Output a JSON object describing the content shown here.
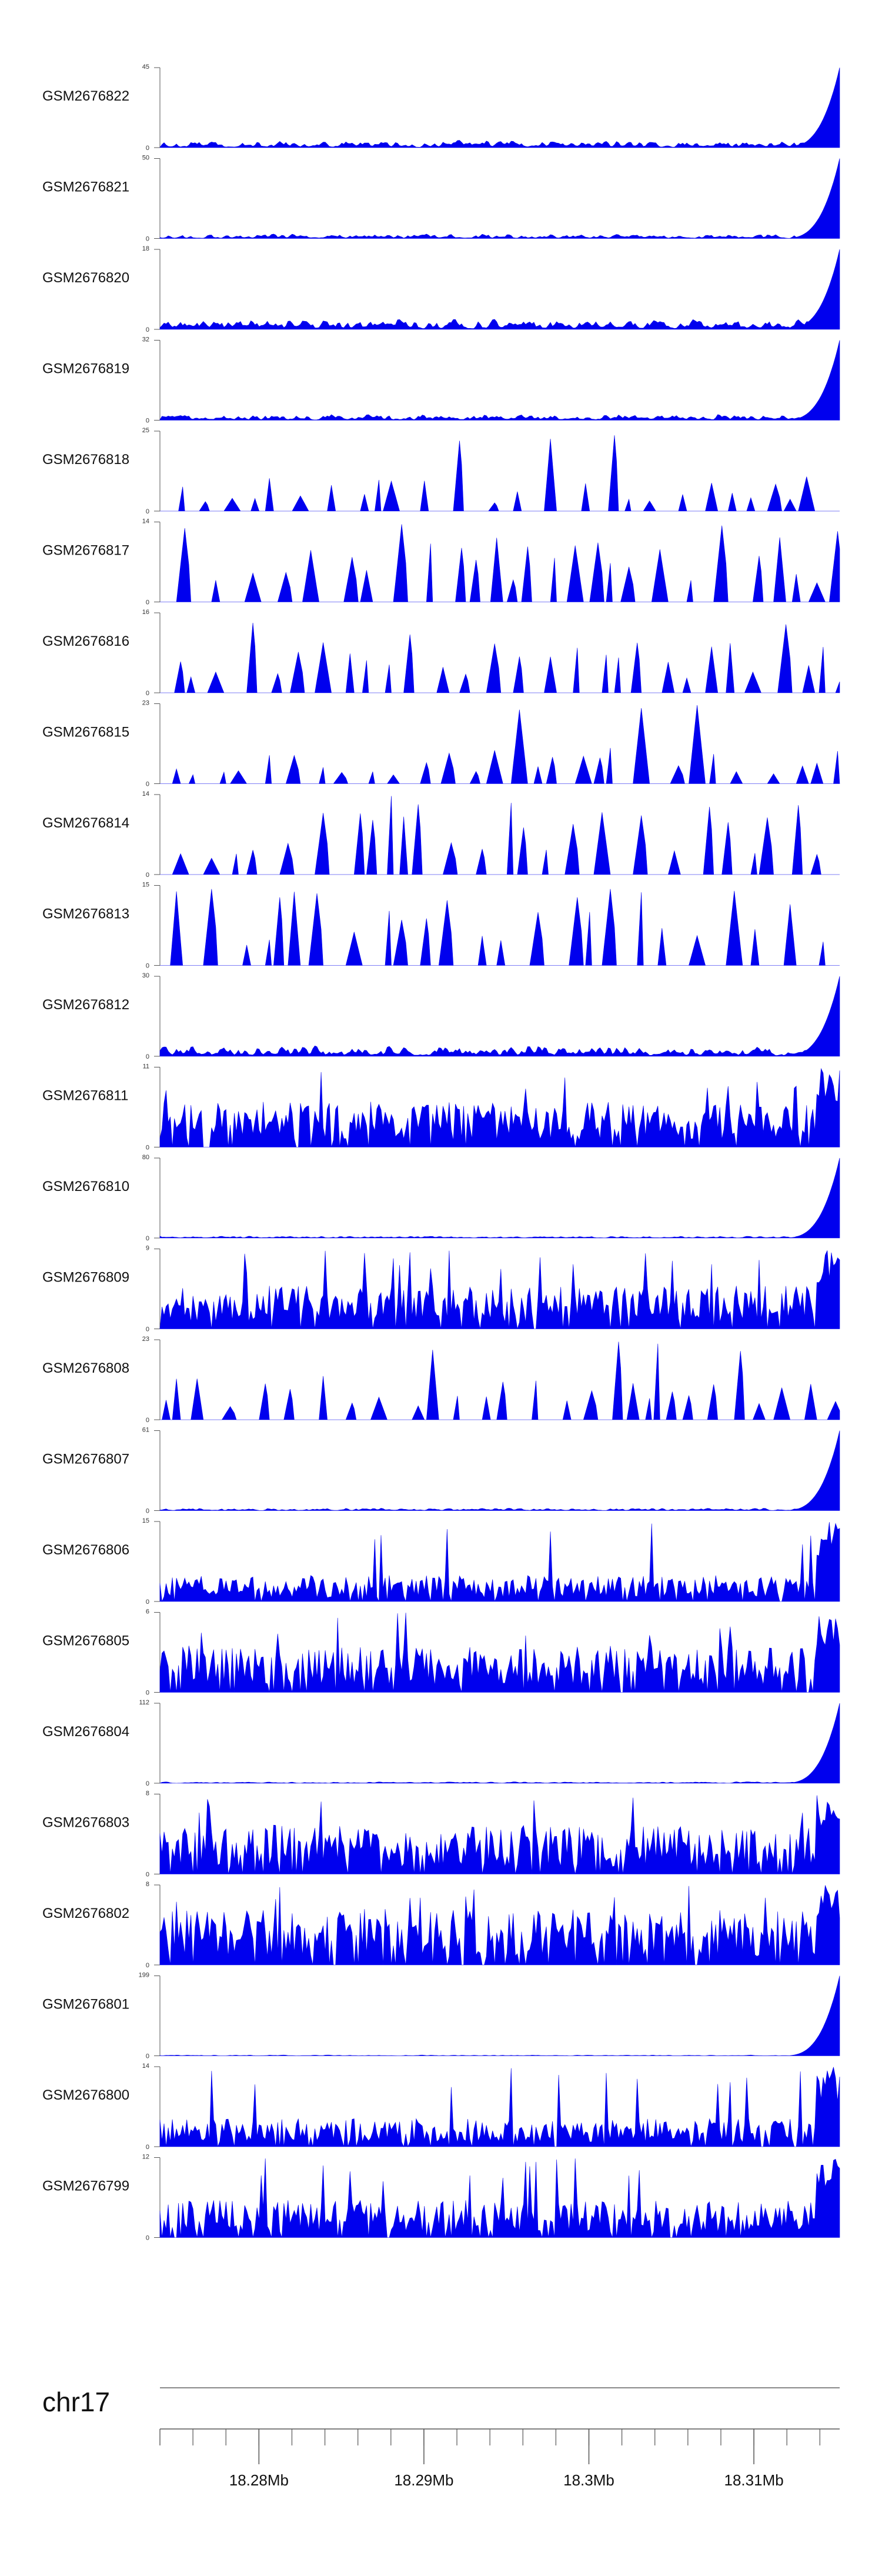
{
  "colors": {
    "signal": "#0000ee",
    "axis": "#888888",
    "text": "#111111"
  },
  "chart_data": {
    "type": "area",
    "chromosome": "chr17",
    "xlim": [
      18.274,
      18.3152
    ],
    "ruler": {
      "major_ticks": [
        18.28,
        18.29,
        18.3,
        18.31
      ],
      "tick_labels": [
        "18.28Mb",
        "18.29Mb",
        "18.3Mb",
        "18.31Mb"
      ],
      "minor_step": 0.002
    },
    "tracks": [
      {
        "name": "GSM2676822",
        "ymax": 45,
        "ymin": 0,
        "shape": "endpeak",
        "base": 4,
        "seed": 822
      },
      {
        "name": "GSM2676821",
        "ymax": 50,
        "ymin": 0,
        "shape": "endpeak",
        "base": 3,
        "seed": 821
      },
      {
        "name": "GSM2676820",
        "ymax": 18,
        "ymin": 0,
        "shape": "endpeak",
        "base": 2.5,
        "seed": 820
      },
      {
        "name": "GSM2676819",
        "ymax": 32,
        "ymin": 0,
        "shape": "endpeak",
        "base": 2.5,
        "seed": 819
      },
      {
        "name": "GSM2676818",
        "ymax": 25,
        "ymin": 0,
        "shape": "sparse",
        "base": 6,
        "seed": 818
      },
      {
        "name": "GSM2676817",
        "ymax": 14,
        "ymin": 0,
        "shape": "sparse",
        "base": 8,
        "seed": 817
      },
      {
        "name": "GSM2676816",
        "ymax": 16,
        "ymin": 0,
        "shape": "sparse",
        "base": 7,
        "seed": 816
      },
      {
        "name": "GSM2676815",
        "ymax": 23,
        "ymin": 0,
        "shape": "sparse",
        "base": 6,
        "seed": 815
      },
      {
        "name": "GSM2676814",
        "ymax": 14,
        "ymin": 0,
        "shape": "sparse",
        "base": 7,
        "seed": 814
      },
      {
        "name": "GSM2676813",
        "ymax": 15,
        "ymin": 0,
        "shape": "sparse",
        "base": 8,
        "seed": 813
      },
      {
        "name": "GSM2676812",
        "ymax": 30,
        "ymin": 0,
        "shape": "endpeak",
        "base": 4,
        "seed": 812
      },
      {
        "name": "GSM2676811",
        "ymax": 11,
        "ymin": 0,
        "shape": "dense",
        "base": 4.5,
        "seed": 811
      },
      {
        "name": "GSM2676810",
        "ymax": 80,
        "ymin": 0,
        "shape": "endpeak",
        "base": 2,
        "seed": 810
      },
      {
        "name": "GSM2676809",
        "ymax": 9,
        "ymin": 0,
        "shape": "dense",
        "base": 3.5,
        "seed": 809
      },
      {
        "name": "GSM2676808",
        "ymax": 23,
        "ymin": 0,
        "shape": "sparse",
        "base": 7,
        "seed": 808
      },
      {
        "name": "GSM2676807",
        "ymax": 61,
        "ymin": 0,
        "shape": "endpeak",
        "base": 2,
        "seed": 807
      },
      {
        "name": "GSM2676806",
        "ymax": 15,
        "ymin": 0,
        "shape": "dense",
        "base": 3.5,
        "seed": 806
      },
      {
        "name": "GSM2676805",
        "ymax": 6,
        "ymin": 0,
        "shape": "dense",
        "base": 2.5,
        "seed": 805
      },
      {
        "name": "GSM2676804",
        "ymax": 112,
        "ymin": 0,
        "shape": "endpeak",
        "base": 2,
        "seed": 804
      },
      {
        "name": "GSM2676803",
        "ymax": 8,
        "ymin": 0,
        "shape": "dense",
        "base": 3.5,
        "seed": 803
      },
      {
        "name": "GSM2676802",
        "ymax": 8,
        "ymin": 0,
        "shape": "dense",
        "base": 4,
        "seed": 802
      },
      {
        "name": "GSM2676801",
        "ymax": 199,
        "ymin": 0,
        "shape": "endpeak",
        "base": 2,
        "seed": 801
      },
      {
        "name": "GSM2676800",
        "ymax": 14,
        "ymin": 0,
        "shape": "dense",
        "base": 3.5,
        "seed": 800
      },
      {
        "name": "GSM2676799",
        "ymax": 12,
        "ymin": 0,
        "shape": "dense",
        "base": 4,
        "seed": 799
      }
    ]
  }
}
